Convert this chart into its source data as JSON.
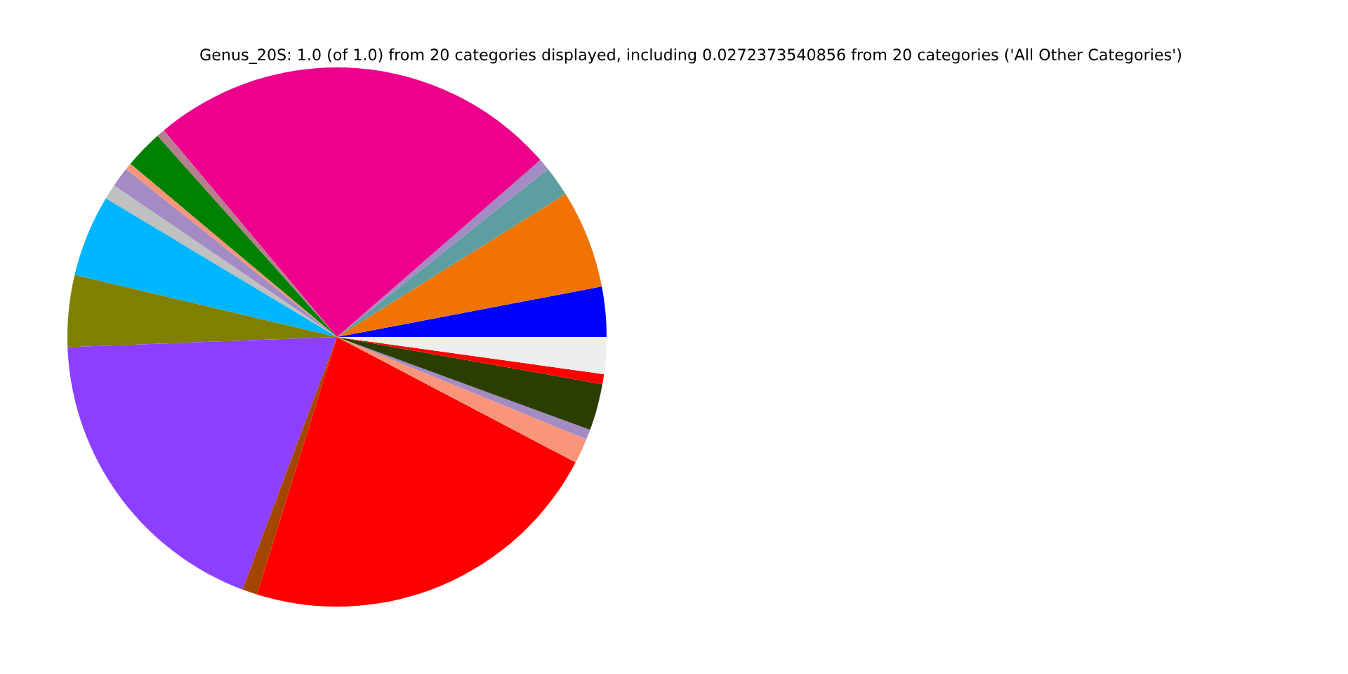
{
  "chart_data": {
    "type": "pie",
    "title": "Genus_20S: 1.0 (of 1.0) from 20 categories displayed, including 0.0272373540856 from 20 categories ('All Other Categories')",
    "categories": [
      null,
      null,
      null,
      null,
      null,
      null,
      null,
      null,
      null,
      null,
      null,
      null,
      null,
      null,
      null,
      null,
      null,
      null,
      null,
      null
    ],
    "values": [
      3.0,
      5.9,
      1.8,
      0.7,
      24.7,
      0.5,
      2.3,
      0.4,
      1.2,
      0.9,
      4.9,
      4.3,
      18.7,
      0.9,
      22.1,
      1.5,
      0.6,
      2.8,
      0.6,
      2.2
    ],
    "colors": [
      "#0000ff",
      "#f07304",
      "#5f9ea0",
      "#a38bc4",
      "#ec008c",
      "#b77e8f",
      "#008000",
      "#f99679",
      "#a38bc4",
      "#c0c0c0",
      "#00b6ff",
      "#808000",
      "#8c3fff",
      "#a34700",
      "#ff0000",
      "#f99679",
      "#a38bc4",
      "#2b3e00",
      "#ff0000",
      "#eeeeee"
    ],
    "legend": false
  }
}
